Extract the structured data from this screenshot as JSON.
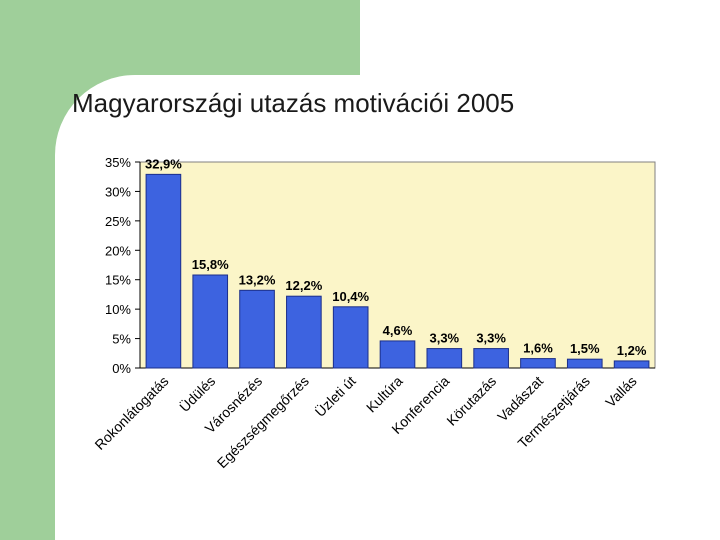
{
  "slide": {
    "title": "Magyarországi utazás motivációi 2005"
  },
  "colors": {
    "background_green": "#9fcf9a",
    "plot_background": "#fbf5c8",
    "bar_fill": "#3d63e0",
    "bar_stroke": "#1c2f8a"
  },
  "chart_data": {
    "type": "bar",
    "title": "Magyarországi utazás motivációi 2005",
    "xlabel": "",
    "ylabel": "",
    "ylim": [
      0,
      35
    ],
    "yticks": [
      "0%",
      "5%",
      "10%",
      "15%",
      "20%",
      "25%",
      "30%",
      "35%"
    ],
    "grid": false,
    "legend": "none",
    "categories": [
      "Rokonlátogatás",
      "Üdülés",
      "Városnézés",
      "Egészségmegőrzés",
      "Üzleti út",
      "Kultúra",
      "Konferencia",
      "Körutazás",
      "Vadászat",
      "Természetjárás",
      "Vallás"
    ],
    "values": [
      32.9,
      15.8,
      13.2,
      12.2,
      10.4,
      4.6,
      3.3,
      3.3,
      1.6,
      1.5,
      1.2
    ],
    "data_labels": [
      "32,9%",
      "15,8%",
      "13,2%",
      "12,2%",
      "10,4%",
      "4,6%",
      "3,3%",
      "3,3%",
      "1,6%",
      "1,5%",
      "1,2%"
    ]
  }
}
